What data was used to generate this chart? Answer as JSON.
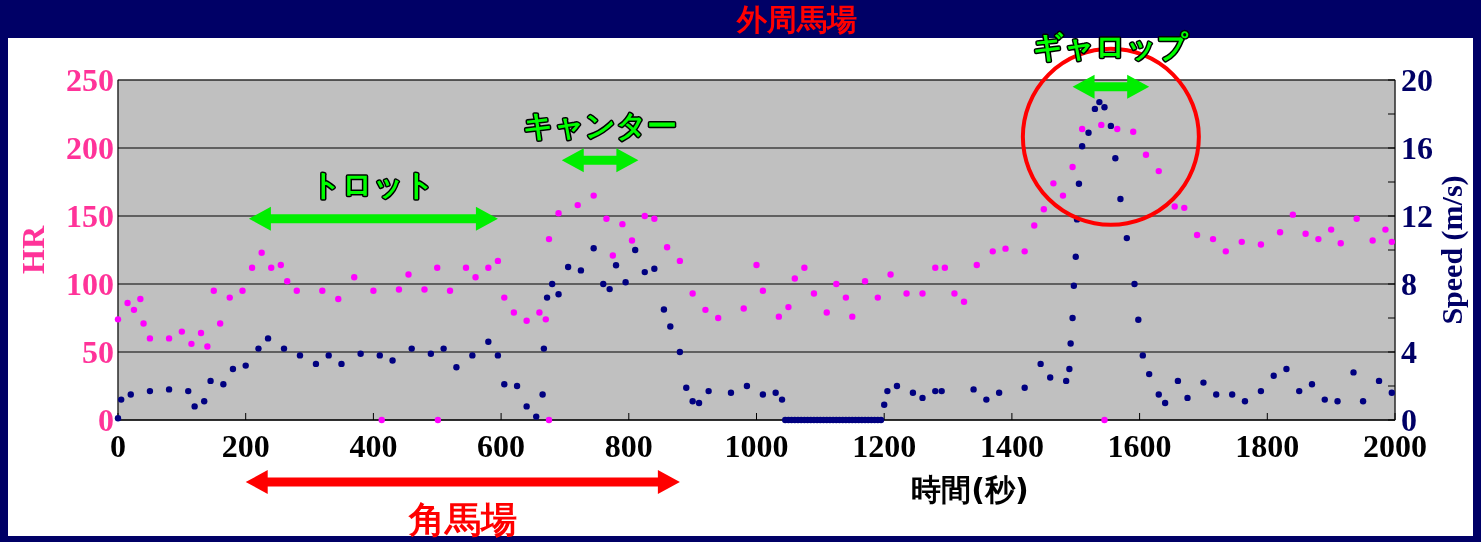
{
  "chart_data": {
    "type": "scatter",
    "title": "外周馬場",
    "xlabel": "時間(秒)",
    "ylabel": "HR",
    "y2label": "Speed (m/s)",
    "xlim": [
      0,
      2000
    ],
    "xticks": [
      0,
      200,
      400,
      600,
      800,
      1000,
      1200,
      1400,
      1600,
      1800,
      2000
    ],
    "ylim": [
      0,
      250
    ],
    "yticks": [
      0,
      50,
      100,
      150,
      200,
      250
    ],
    "y2lim": [
      0,
      20
    ],
    "y2ticks": [
      0,
      {
        "value": 2,
        "label": null
      },
      4,
      {
        "value": 6,
        "label": null
      },
      8,
      {
        "value": 10,
        "label": null
      },
      12,
      {
        "value": 14,
        "label": null
      },
      16,
      {
        "value": 18,
        "label": null
      },
      20
    ],
    "grid": "y",
    "marker": "circle",
    "series": [
      {
        "color": "#ff00ff",
        "x": [
          0,
          15,
          25,
          35,
          40,
          50,
          80,
          100,
          115,
          130,
          140,
          150,
          160,
          175,
          195,
          210,
          225,
          240,
          255,
          265,
          280,
          320,
          345,
          370,
          400,
          413,
          440,
          455,
          480,
          500,
          501,
          520,
          545,
          560,
          580,
          595,
          605,
          620,
          640,
          660,
          670,
          675,
          675,
          690,
          720,
          745,
          765,
          775,
          790,
          805,
          825,
          840,
          860,
          880,
          900,
          920,
          940,
          980,
          1000,
          1010,
          1035,
          1050,
          1060,
          1075,
          1090,
          1110,
          1125,
          1140,
          1150,
          1170,
          1190,
          1210,
          1235,
          1260,
          1280,
          1295,
          1310,
          1325,
          1345,
          1370,
          1390,
          1420,
          1435,
          1450,
          1465,
          1480,
          1495,
          1510,
          1540,
          1545,
          1565,
          1590,
          1610,
          1630,
          1655,
          1670,
          1690,
          1715,
          1735,
          1760,
          1790,
          1820,
          1840,
          1860,
          1880,
          1900,
          1915,
          1940,
          1965,
          1985,
          1995
        ],
        "values": [
          74,
          86,
          81,
          89,
          71,
          60,
          60,
          65,
          56,
          64,
          54,
          95,
          71,
          90,
          95,
          112,
          123,
          112,
          114,
          102,
          95,
          95,
          89,
          105,
          95,
          0,
          96,
          107,
          96,
          112,
          0,
          95,
          112,
          105,
          112,
          117,
          90,
          79,
          73,
          79,
          74,
          0,
          133,
          152,
          158,
          165,
          148,
          121,
          144,
          132,
          150,
          148,
          127,
          117,
          93,
          81,
          75,
          82,
          114,
          95,
          76,
          83,
          104,
          112,
          93,
          79,
          100,
          90,
          76,
          102,
          90,
          107,
          93,
          93,
          112,
          112,
          93,
          87,
          114,
          124,
          126,
          124,
          143,
          155,
          174,
          165,
          186,
          214,
          217,
          0,
          214,
          212,
          195,
          183,
          157,
          156,
          136,
          133,
          124,
          131,
          129,
          138,
          151,
          137,
          133,
          140,
          130,
          148,
          132,
          140,
          131
        ]
      },
      {
        "color": "#000080",
        "axis": "y2",
        "x": [
          0,
          5,
          20,
          50,
          80,
          110,
          120,
          135,
          145,
          165,
          180,
          200,
          220,
          235,
          260,
          285,
          310,
          330,
          350,
          380,
          410,
          430,
          460,
          490,
          510,
          530,
          555,
          580,
          595,
          605,
          625,
          640,
          655,
          665,
          667,
          672,
          680,
          690,
          705,
          725,
          745,
          760,
          770,
          780,
          795,
          810,
          825,
          840,
          855,
          865,
          880,
          890,
          900,
          910,
          925,
          960,
          985,
          1010,
          1030,
          1040,
          1045,
          1050,
          1055,
          1060,
          1065,
          1070,
          1075,
          1080,
          1085,
          1090,
          1095,
          1100,
          1105,
          1110,
          1115,
          1120,
          1125,
          1130,
          1135,
          1140,
          1145,
          1150,
          1155,
          1160,
          1165,
          1170,
          1175,
          1180,
          1185,
          1190,
          1195,
          1200,
          1205,
          1220,
          1245,
          1260,
          1280,
          1290,
          1340,
          1360,
          1380,
          1420,
          1445,
          1460,
          1485,
          1490,
          1492,
          1495,
          1497,
          1500,
          1502,
          1505,
          1510,
          1520,
          1530,
          1537,
          1545,
          1555,
          1562,
          1570,
          1580,
          1592,
          1598,
          1605,
          1615,
          1630,
          1640,
          1660,
          1675,
          1700,
          1720,
          1745,
          1765,
          1790,
          1810,
          1830,
          1850,
          1870,
          1890,
          1910,
          1935,
          1950,
          1975,
          1995
        ],
        "values": [
          0.1,
          1.2,
          1.5,
          1.7,
          1.8,
          1.7,
          0.8,
          1.1,
          2.3,
          2.1,
          3.0,
          3.2,
          4.2,
          4.8,
          4.2,
          3.8,
          3.3,
          3.8,
          3.3,
          3.9,
          3.8,
          3.5,
          4.2,
          3.9,
          4.2,
          3.1,
          3.8,
          4.6,
          3.8,
          2.1,
          2.0,
          0.8,
          0.2,
          1.5,
          4.2,
          7.2,
          8.0,
          7.4,
          9.0,
          8.8,
          10.1,
          8.0,
          7.7,
          9.1,
          8.1,
          10.0,
          8.7,
          8.9,
          6.5,
          5.5,
          4.0,
          1.9,
          1.1,
          1.0,
          1.7,
          1.6,
          2.0,
          1.5,
          1.6,
          1.2,
          0,
          0,
          0,
          0,
          0,
          0,
          0,
          0,
          0,
          0,
          0,
          0,
          0,
          0,
          0,
          0,
          0,
          0,
          0,
          0,
          0,
          0,
          0,
          0,
          0,
          0,
          0,
          0,
          0,
          0,
          0,
          0.9,
          1.7,
          2.0,
          1.6,
          1.3,
          1.7,
          1.7,
          1.8,
          1.2,
          1.6,
          1.9,
          3.3,
          2.5,
          2.3,
          3.0,
          4.5,
          6.0,
          7.9,
          9.6,
          11.8,
          13.9,
          16.1,
          16.9,
          18.3,
          18.7,
          18.4,
          17.3,
          15.4,
          13.0,
          10.7,
          8.0,
          5.9,
          3.8,
          2.7,
          1.5,
          1.0,
          2.3,
          1.3,
          2.2,
          1.5,
          1.5,
          1.1,
          1.7,
          2.6,
          3.0,
          1.7,
          2.1,
          1.2,
          1.1,
          2.8,
          1.1,
          2.3,
          1.6
        ]
      }
    ],
    "annotations": [
      "トロット",
      "キャンター",
      "ギャロップ",
      "角馬場"
    ]
  }
}
